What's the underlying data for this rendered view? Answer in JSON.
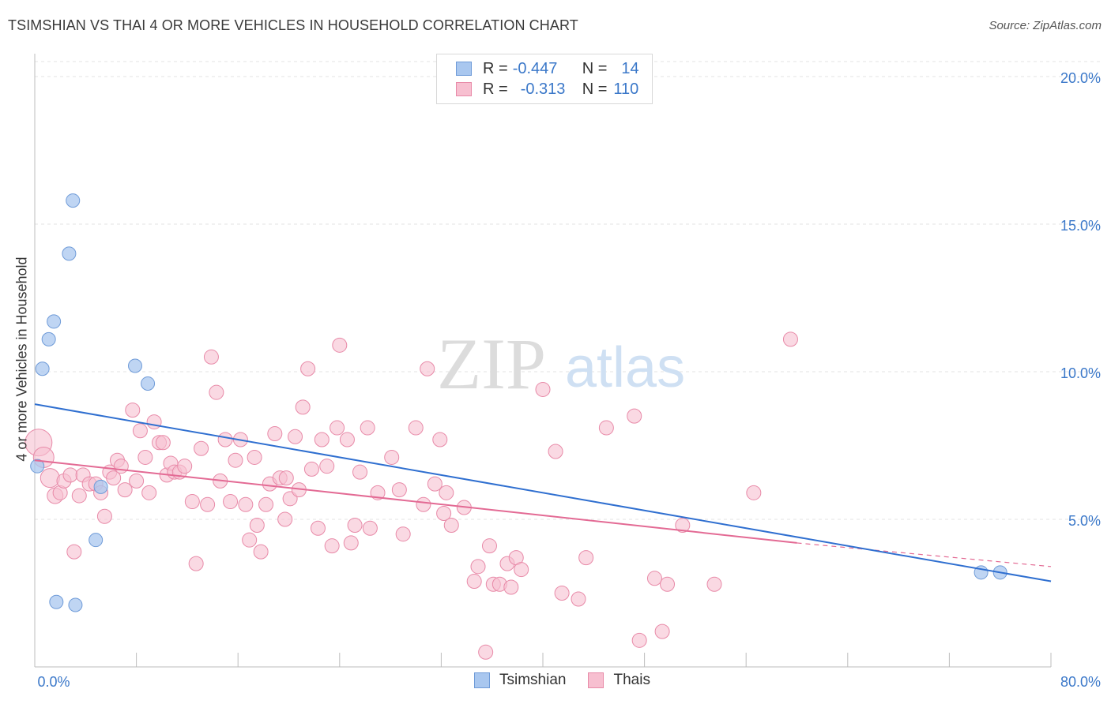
{
  "header": {
    "title": "TSIMSHIAN VS THAI 4 OR MORE VEHICLES IN HOUSEHOLD CORRELATION CHART",
    "source": "Source: ZipAtlas.com"
  },
  "watermark": {
    "zip": "ZIP",
    "atlas": "atlas"
  },
  "legend": {
    "rows": [
      {
        "r_label": "R =",
        "r_value": "-0.447",
        "n_label": "N =",
        "n_value": "14",
        "color": "#a9c7ef",
        "border": "#6f9bd8"
      },
      {
        "r_label": "R =",
        "r_value": "-0.313",
        "n_label": "N =",
        "n_value": "110",
        "color": "#f7bfd0",
        "border": "#e88aa8"
      }
    ]
  },
  "bottom_legend": [
    {
      "label": "Tsimshian",
      "color": "#a9c7ef",
      "border": "#6f9bd8"
    },
    {
      "label": "Thais",
      "color": "#f7bfd0",
      "border": "#e88aa8"
    }
  ],
  "colors": {
    "tsimshian_fill": "#a9c7ef",
    "tsimshian_stroke": "#6f9bd8",
    "tsimshian_line": "#2f6fd0",
    "thai_fill": "#f7bfd0",
    "thai_stroke": "#e88aa8",
    "thai_line": "#e36a94",
    "tick_label": "#3b78c9"
  },
  "chart_data": {
    "type": "scatter",
    "title": "TSIMSHIAN VS THAI 4 OR MORE VEHICLES IN HOUSEHOLD CORRELATION CHART",
    "xlabel": "",
    "ylabel": "4 or more Vehicles in Household",
    "xlim": [
      0,
      80
    ],
    "ylim": [
      0,
      20
    ],
    "x_tick_labels": [
      "0.0%",
      "80.0%"
    ],
    "y_ticks": [
      5,
      10,
      15,
      20
    ],
    "y_tick_labels": [
      "5.0%",
      "10.0%",
      "15.0%",
      "20.0%"
    ],
    "grid": "horizontal dashed",
    "legend_position": "top-center",
    "series": [
      {
        "name": "Tsimshian",
        "points": [
          [
            3.0,
            15.8
          ],
          [
            2.7,
            14.0
          ],
          [
            1.5,
            11.7
          ],
          [
            1.1,
            11.1
          ],
          [
            0.6,
            10.1
          ],
          [
            7.9,
            10.2
          ],
          [
            8.9,
            9.6
          ],
          [
            0.2,
            6.8
          ],
          [
            5.2,
            6.1
          ],
          [
            4.8,
            4.3
          ],
          [
            1.7,
            2.2
          ],
          [
            3.2,
            2.1
          ],
          [
            74.5,
            3.2
          ],
          [
            76.0,
            3.2
          ]
        ],
        "trend": {
          "x": [
            0,
            80
          ],
          "y": [
            8.9,
            2.9
          ]
        }
      },
      {
        "name": "Thais",
        "points": [
          [
            0.3,
            7.6
          ],
          [
            0.7,
            7.1
          ],
          [
            1.2,
            6.4
          ],
          [
            1.6,
            5.8
          ],
          [
            2.0,
            5.9
          ],
          [
            2.3,
            6.3
          ],
          [
            2.8,
            6.5
          ],
          [
            3.1,
            3.9
          ],
          [
            3.5,
            5.8
          ],
          [
            3.8,
            6.5
          ],
          [
            4.3,
            6.2
          ],
          [
            4.8,
            6.2
          ],
          [
            5.2,
            5.9
          ],
          [
            5.5,
            5.1
          ],
          [
            5.9,
            6.6
          ],
          [
            6.2,
            6.4
          ],
          [
            6.5,
            7.0
          ],
          [
            6.8,
            6.8
          ],
          [
            7.1,
            6.0
          ],
          [
            7.7,
            8.7
          ],
          [
            8.0,
            6.3
          ],
          [
            8.3,
            8.0
          ],
          [
            8.7,
            7.1
          ],
          [
            9.0,
            5.9
          ],
          [
            9.4,
            8.3
          ],
          [
            9.8,
            7.6
          ],
          [
            10.1,
            7.6
          ],
          [
            10.4,
            6.5
          ],
          [
            10.7,
            6.9
          ],
          [
            11.0,
            6.6
          ],
          [
            11.4,
            6.6
          ],
          [
            11.8,
            6.8
          ],
          [
            12.4,
            5.6
          ],
          [
            12.7,
            3.5
          ],
          [
            13.1,
            7.4
          ],
          [
            13.6,
            5.5
          ],
          [
            13.9,
            10.5
          ],
          [
            14.3,
            9.3
          ],
          [
            14.6,
            6.3
          ],
          [
            15.0,
            7.7
          ],
          [
            15.4,
            5.6
          ],
          [
            15.8,
            7.0
          ],
          [
            16.2,
            7.7
          ],
          [
            16.6,
            5.5
          ],
          [
            16.9,
            4.3
          ],
          [
            17.3,
            7.1
          ],
          [
            17.5,
            4.8
          ],
          [
            17.8,
            3.9
          ],
          [
            18.2,
            5.5
          ],
          [
            18.5,
            6.2
          ],
          [
            18.9,
            7.9
          ],
          [
            19.3,
            6.4
          ],
          [
            19.7,
            5.0
          ],
          [
            20.1,
            5.7
          ],
          [
            20.5,
            7.8
          ],
          [
            20.8,
            6.0
          ],
          [
            21.1,
            8.8
          ],
          [
            21.5,
            10.1
          ],
          [
            21.8,
            6.7
          ],
          [
            22.3,
            4.7
          ],
          [
            22.6,
            7.7
          ],
          [
            23.0,
            6.8
          ],
          [
            23.4,
            4.1
          ],
          [
            23.8,
            8.1
          ],
          [
            24.0,
            10.9
          ],
          [
            24.6,
            7.7
          ],
          [
            24.9,
            4.2
          ],
          [
            25.2,
            4.8
          ],
          [
            25.6,
            6.6
          ],
          [
            26.2,
            8.1
          ],
          [
            26.4,
            4.7
          ],
          [
            27.0,
            5.9
          ],
          [
            28.1,
            7.1
          ],
          [
            28.7,
            6.0
          ],
          [
            29.0,
            4.5
          ],
          [
            30.0,
            8.1
          ],
          [
            30.6,
            5.5
          ],
          [
            30.9,
            10.1
          ],
          [
            31.5,
            6.2
          ],
          [
            31.9,
            7.7
          ],
          [
            32.2,
            5.2
          ],
          [
            32.4,
            5.9
          ],
          [
            32.8,
            4.8
          ],
          [
            33.8,
            5.4
          ],
          [
            34.6,
            2.9
          ],
          [
            34.9,
            3.4
          ],
          [
            35.5,
            0.5
          ],
          [
            35.8,
            4.1
          ],
          [
            36.1,
            2.8
          ],
          [
            36.6,
            2.8
          ],
          [
            37.2,
            3.5
          ],
          [
            37.5,
            2.7
          ],
          [
            37.9,
            3.7
          ],
          [
            38.3,
            3.3
          ],
          [
            40.0,
            9.4
          ],
          [
            41.0,
            7.3
          ],
          [
            41.5,
            2.5
          ],
          [
            42.8,
            2.3
          ],
          [
            43.4,
            3.7
          ],
          [
            45.0,
            8.1
          ],
          [
            47.2,
            8.5
          ],
          [
            48.8,
            3.0
          ],
          [
            49.4,
            1.2
          ],
          [
            47.6,
            0.9
          ],
          [
            49.8,
            2.8
          ],
          [
            51.0,
            4.8
          ],
          [
            53.5,
            2.8
          ],
          [
            56.6,
            5.9
          ],
          [
            59.5,
            11.1
          ],
          [
            19.8,
            6.4
          ]
        ],
        "trend": {
          "x": [
            0,
            60
          ],
          "y": [
            7.0,
            4.2
          ]
        },
        "trend_dashed": {
          "x": [
            60,
            80
          ],
          "y": [
            4.2,
            3.4
          ]
        }
      }
    ]
  }
}
